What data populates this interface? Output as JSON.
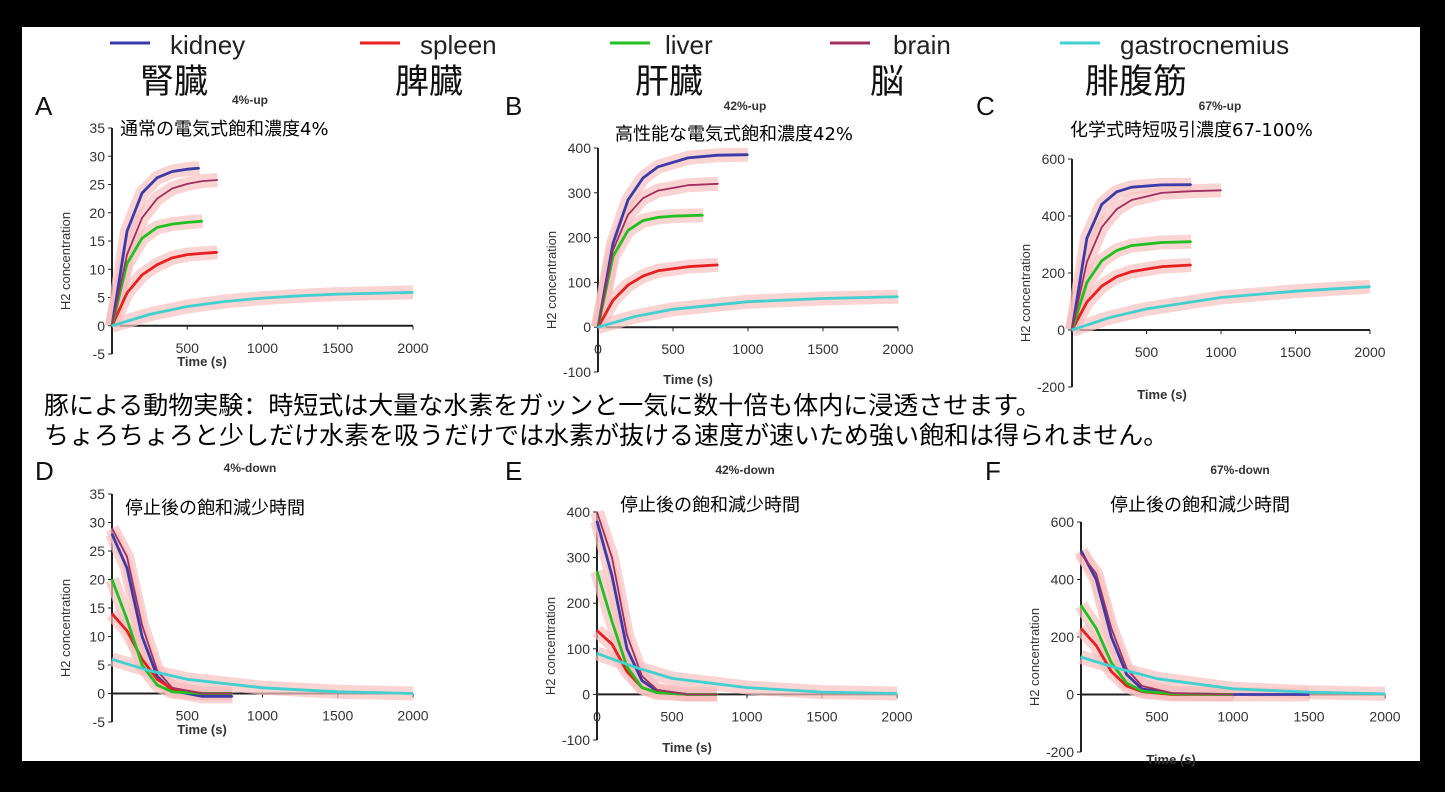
{
  "legend": [
    {
      "name": "kidney",
      "jp": "腎臓",
      "color": "#3a3aa8"
    },
    {
      "name": "spleen",
      "jp": "脾臓",
      "color": "#e82020"
    },
    {
      "name": "liver",
      "jp": "肝臓",
      "color": "#20c020"
    },
    {
      "name": "brain",
      "jp": "脳",
      "color": "#a03060"
    },
    {
      "name": "gastrocnemius",
      "jp": "腓腹筋",
      "color": "#40d0d0"
    }
  ],
  "band_color": "#f8c0c0",
  "caption_lines": [
    "豚による動物実験：時短式は大量な水素をガッンと一気に数十倍も体内に浸透させます。",
    "ちょろちょろと少しだけ水素を吸うだけでは水素が抜ける速度が速いため強い飽和は得られません。"
  ],
  "chart_data": [
    {
      "panel": "A",
      "type": "line",
      "title": "4%-up",
      "annotation": "通常の電気式飽和濃度4%",
      "xlabel": "Time (s)",
      "ylabel": "H2 concentration",
      "xlim": [
        0,
        2000
      ],
      "ylim": [
        -5,
        35
      ],
      "xticks": [
        500,
        1000,
        1500,
        2000
      ],
      "yticks": [
        -5,
        0,
        5,
        10,
        15,
        20,
        25,
        30,
        35
      ],
      "series": [
        {
          "name": "kidney",
          "points": [
            [
              0,
              0
            ],
            [
              100,
              16.7
            ],
            [
              200,
              23.5
            ],
            [
              300,
              26.2
            ],
            [
              400,
              27.3
            ],
            [
              500,
              27.7
            ],
            [
              580,
              27.9
            ]
          ]
        },
        {
          "name": "spleen",
          "points": [
            [
              0,
              0
            ],
            [
              100,
              5.8
            ],
            [
              200,
              9.0
            ],
            [
              300,
              10.8
            ],
            [
              400,
              12
            ],
            [
              500,
              12.6
            ],
            [
              600,
              12.8
            ],
            [
              700,
              13
            ]
          ]
        },
        {
          "name": "liver",
          "points": [
            [
              0,
              0
            ],
            [
              100,
              11
            ],
            [
              200,
              15.5
            ],
            [
              300,
              17.4
            ],
            [
              400,
              18
            ],
            [
              500,
              18.3
            ],
            [
              600,
              18.5
            ]
          ]
        },
        {
          "name": "brain",
          "points": [
            [
              0,
              0
            ],
            [
              100,
              12.6
            ],
            [
              200,
              19.1
            ],
            [
              300,
              22.5
            ],
            [
              400,
              24.3
            ],
            [
              500,
              25.1
            ],
            [
              600,
              25.6
            ],
            [
              700,
              25.8
            ]
          ]
        },
        {
          "name": "gastrocnemius",
          "points": [
            [
              0,
              0
            ],
            [
              250,
              2
            ],
            [
              500,
              3.4
            ],
            [
              750,
              4.3
            ],
            [
              1000,
              4.9
            ],
            [
              1250,
              5.3
            ],
            [
              1500,
              5.6
            ],
            [
              2000,
              5.9
            ]
          ]
        }
      ]
    },
    {
      "panel": "B",
      "type": "line",
      "title": "42%-up",
      "annotation": "高性能な電気式飽和濃度42%",
      "xlabel": "Time (s)",
      "ylabel": "H2 concentration",
      "xlim": [
        0,
        2000
      ],
      "ylim": [
        -100,
        400
      ],
      "xticks": [
        0,
        500,
        1000,
        1500,
        2000
      ],
      "yticks": [
        -100,
        0,
        100,
        200,
        300,
        400
      ],
      "series": [
        {
          "name": "kidney",
          "points": [
            [
              0,
              0
            ],
            [
              100,
              187
            ],
            [
              200,
              284
            ],
            [
              300,
              333
            ],
            [
              400,
              358
            ],
            [
              600,
              378
            ],
            [
              800,
              384
            ],
            [
              1000,
              385
            ]
          ]
        },
        {
          "name": "spleen",
          "points": [
            [
              0,
              0
            ],
            [
              100,
              60
            ],
            [
              200,
              94
            ],
            [
              300,
              114
            ],
            [
              400,
              126
            ],
            [
              600,
              135
            ],
            [
              800,
              139
            ]
          ]
        },
        {
          "name": "liver",
          "points": [
            [
              0,
              0
            ],
            [
              100,
              158
            ],
            [
              200,
              216
            ],
            [
              300,
              238
            ],
            [
              400,
              245
            ],
            [
              500,
              248
            ],
            [
              700,
              250
            ]
          ]
        },
        {
          "name": "brain",
          "points": [
            [
              0,
              0
            ],
            [
              100,
              172
            ],
            [
              200,
              251
            ],
            [
              300,
              288
            ],
            [
              400,
              305
            ],
            [
              600,
              317
            ],
            [
              800,
              320
            ]
          ]
        },
        {
          "name": "gastrocnemius",
          "points": [
            [
              0,
              0
            ],
            [
              250,
              24
            ],
            [
              500,
              40
            ],
            [
              1000,
              57
            ],
            [
              1500,
              64
            ],
            [
              2000,
              68
            ]
          ]
        }
      ]
    },
    {
      "panel": "C",
      "type": "line",
      "title": "67%-up",
      "annotation": "化学式時短吸引濃度67-100%",
      "xlabel": "Time (s)",
      "ylabel": "H2 concentration",
      "xlim": [
        0,
        2000
      ],
      "ylim": [
        -200,
        600
      ],
      "xticks": [
        500,
        1000,
        1500,
        2000
      ],
      "yticks": [
        -200,
        0,
        200,
        400,
        600
      ],
      "series": [
        {
          "name": "kidney",
          "points": [
            [
              0,
              0
            ],
            [
              100,
              322
            ],
            [
              200,
              441
            ],
            [
              300,
              485
            ],
            [
              400,
              501
            ],
            [
              600,
              509
            ],
            [
              800,
              510
            ]
          ]
        },
        {
          "name": "spleen",
          "points": [
            [
              0,
              0
            ],
            [
              100,
              98
            ],
            [
              200,
              154
            ],
            [
              300,
              187
            ],
            [
              400,
              205
            ],
            [
              600,
              222
            ],
            [
              800,
              228
            ]
          ]
        },
        {
          "name": "liver",
          "points": [
            [
              0,
              0
            ],
            [
              100,
              167
            ],
            [
              200,
              243
            ],
            [
              300,
              279
            ],
            [
              400,
              296
            ],
            [
              600,
              307
            ],
            [
              800,
              310
            ]
          ]
        },
        {
          "name": "brain",
          "points": [
            [
              0,
              0
            ],
            [
              100,
              239
            ],
            [
              200,
              361
            ],
            [
              300,
              424
            ],
            [
              400,
              456
            ],
            [
              600,
              481
            ],
            [
              800,
              487
            ],
            [
              1000,
              490
            ]
          ]
        },
        {
          "name": "gastrocnemius",
          "points": [
            [
              0,
              0
            ],
            [
              250,
              43
            ],
            [
              500,
              74
            ],
            [
              1000,
              114
            ],
            [
              1500,
              136
            ],
            [
              2000,
              152
            ]
          ]
        }
      ]
    },
    {
      "panel": "D",
      "type": "line",
      "title": "4%-down",
      "annotation": "停止後の飽和減少時間",
      "xlabel": "Time (s)",
      "ylabel": "H2 concentration",
      "xlim": [
        0,
        2000
      ],
      "ylim": [
        -5,
        35
      ],
      "xticks": [
        500,
        1000,
        1500,
        2000
      ],
      "yticks": [
        -5,
        0,
        5,
        10,
        15,
        20,
        25,
        30,
        35
      ],
      "series": [
        {
          "name": "kidney",
          "points": [
            [
              0,
              28
            ],
            [
              100,
              22
            ],
            [
              200,
              10
            ],
            [
              300,
              3
            ],
            [
              400,
              0.5
            ],
            [
              600,
              -0.5
            ],
            [
              800,
              -0.5
            ]
          ]
        },
        {
          "name": "spleen",
          "points": [
            [
              0,
              14
            ],
            [
              100,
              11
            ],
            [
              200,
              6
            ],
            [
              300,
              2.5
            ],
            [
              400,
              0.8
            ],
            [
              600,
              0
            ],
            [
              800,
              0
            ]
          ]
        },
        {
          "name": "liver",
          "points": [
            [
              0,
              20
            ],
            [
              100,
              13
            ],
            [
              200,
              5
            ],
            [
              300,
              1.5
            ],
            [
              400,
              0.3
            ],
            [
              600,
              0
            ],
            [
              800,
              0
            ]
          ]
        },
        {
          "name": "brain",
          "points": [
            [
              0,
              29
            ],
            [
              100,
              24
            ],
            [
              200,
              12
            ],
            [
              300,
              4
            ],
            [
              400,
              1
            ],
            [
              600,
              0
            ],
            [
              800,
              0
            ]
          ]
        },
        {
          "name": "gastrocnemius",
          "points": [
            [
              0,
              6
            ],
            [
              250,
              4
            ],
            [
              500,
              2.5
            ],
            [
              1000,
              1
            ],
            [
              1500,
              0.3
            ],
            [
              2000,
              0
            ]
          ]
        }
      ]
    },
    {
      "panel": "E",
      "type": "line",
      "title": "42%-down",
      "annotation": "停止後の飽和減少時間",
      "xlabel": "Time (s)",
      "ylabel": "H2 concentration",
      "xlim": [
        0,
        2000
      ],
      "ylim": [
        -100,
        400
      ],
      "xticks": [
        0,
        500,
        1000,
        1500,
        2000
      ],
      "yticks": [
        -100,
        0,
        100,
        200,
        300,
        400
      ],
      "series": [
        {
          "name": "kidney",
          "points": [
            [
              0,
              380
            ],
            [
              100,
              260
            ],
            [
              200,
              100
            ],
            [
              300,
              30
            ],
            [
              400,
              8
            ],
            [
              600,
              0
            ],
            [
              800,
              0
            ]
          ]
        },
        {
          "name": "spleen",
          "points": [
            [
              0,
              140
            ],
            [
              100,
              110
            ],
            [
              200,
              50
            ],
            [
              300,
              15
            ],
            [
              400,
              4
            ],
            [
              600,
              0
            ],
            [
              800,
              0
            ]
          ]
        },
        {
          "name": "liver",
          "points": [
            [
              0,
              270
            ],
            [
              100,
              160
            ],
            [
              200,
              60
            ],
            [
              300,
              15
            ],
            [
              400,
              4
            ],
            [
              600,
              0
            ],
            [
              800,
              0
            ]
          ]
        },
        {
          "name": "brain",
          "points": [
            [
              0,
              400
            ],
            [
              100,
              300
            ],
            [
              200,
              130
            ],
            [
              300,
              40
            ],
            [
              400,
              10
            ],
            [
              600,
              0
            ],
            [
              800,
              0
            ]
          ]
        },
        {
          "name": "gastrocnemius",
          "points": [
            [
              0,
              90
            ],
            [
              250,
              60
            ],
            [
              500,
              35
            ],
            [
              1000,
              15
            ],
            [
              1500,
              5
            ],
            [
              2000,
              2
            ]
          ]
        }
      ]
    },
    {
      "panel": "F",
      "type": "line",
      "title": "67%-down",
      "annotation": "停止後の飽和減少時間",
      "xlabel": "Time (s)",
      "ylabel": "H2 concentration",
      "xlim": [
        0,
        2000
      ],
      "ylim": [
        -200,
        600
      ],
      "xticks": [
        500,
        1000,
        1500,
        2000
      ],
      "yticks": [
        -200,
        0,
        200,
        400,
        600
      ],
      "series": [
        {
          "name": "kidney",
          "points": [
            [
              0,
              500
            ],
            [
              100,
              400
            ],
            [
              200,
              200
            ],
            [
              300,
              70
            ],
            [
              400,
              20
            ],
            [
              600,
              3
            ],
            [
              1000,
              0
            ],
            [
              1500,
              0
            ]
          ]
        },
        {
          "name": "spleen",
          "points": [
            [
              0,
              230
            ],
            [
              100,
              170
            ],
            [
              200,
              80
            ],
            [
              300,
              30
            ],
            [
              400,
              10
            ],
            [
              600,
              0
            ],
            [
              1000,
              0
            ]
          ]
        },
        {
          "name": "liver",
          "points": [
            [
              0,
              310
            ],
            [
              100,
              230
            ],
            [
              200,
              110
            ],
            [
              300,
              40
            ],
            [
              400,
              12
            ],
            [
              600,
              2
            ],
            [
              1000,
              0
            ]
          ]
        },
        {
          "name": "brain",
          "points": [
            [
              0,
              490
            ],
            [
              100,
              420
            ],
            [
              200,
              230
            ],
            [
              300,
              90
            ],
            [
              400,
              30
            ],
            [
              600,
              5
            ],
            [
              1000,
              0
            ]
          ]
        },
        {
          "name": "gastrocnemius",
          "points": [
            [
              0,
              130
            ],
            [
              250,
              90
            ],
            [
              500,
              55
            ],
            [
              1000,
              20
            ],
            [
              1500,
              8
            ],
            [
              2000,
              2
            ]
          ]
        }
      ]
    }
  ]
}
